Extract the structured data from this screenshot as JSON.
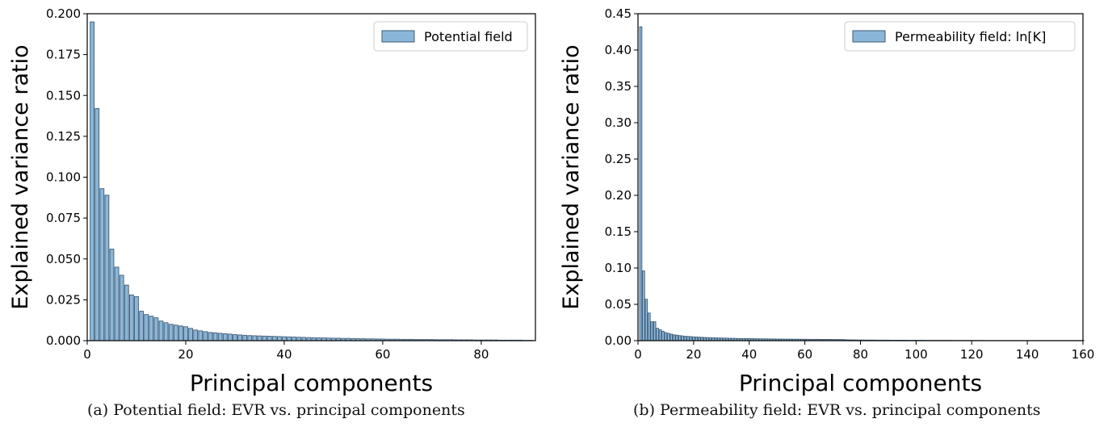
{
  "captions": {
    "a": "(a) Potential field: EVR vs. principal components",
    "b": "(b) Permeability field: EVR vs. principal components"
  },
  "chart_data": [
    {
      "type": "bar",
      "xlabel": "Principal components",
      "ylabel": "Explained variance ratio",
      "legend": "Potential field",
      "legend_position": "top-right",
      "grid": false,
      "xlim": [
        0,
        91
      ],
      "ylim": [
        0,
        0.2
      ],
      "xticks": [
        0,
        20,
        40,
        60,
        80
      ],
      "xtick_labels": [
        "0",
        "20",
        "40",
        "60",
        "80"
      ],
      "yticks": [
        0,
        0.025,
        0.05,
        0.075,
        0.1,
        0.125,
        0.15,
        0.175,
        0.2
      ],
      "ytick_labels": [
        "0.000",
        "0.025",
        "0.050",
        "0.075",
        "0.100",
        "0.125",
        "0.150",
        "0.175",
        "0.200"
      ],
      "bar_color": "#8ab6d9",
      "edge_color": "#3f5b75",
      "x": [
        1,
        2,
        3,
        4,
        5,
        6,
        7,
        8,
        9,
        10,
        11,
        12,
        13,
        14,
        15,
        16,
        17,
        18,
        19,
        20,
        21,
        22,
        23,
        24,
        25,
        26,
        27,
        28,
        29,
        30,
        31,
        32,
        33,
        34,
        35,
        36,
        37,
        38,
        39,
        40,
        41,
        42,
        43,
        44,
        45,
        46,
        47,
        48,
        49,
        50,
        51,
        52,
        53,
        54,
        55,
        56,
        57,
        58,
        59,
        60,
        61,
        62,
        63,
        64,
        65,
        66,
        67,
        68,
        69,
        70,
        71,
        72,
        73,
        74,
        75,
        76,
        77,
        78,
        79,
        80,
        81,
        82,
        83,
        84,
        85,
        86,
        87,
        88,
        89,
        90
      ],
      "values": [
        0.195,
        0.142,
        0.093,
        0.089,
        0.056,
        0.045,
        0.04,
        0.034,
        0.028,
        0.027,
        0.018,
        0.016,
        0.015,
        0.014,
        0.012,
        0.011,
        0.01,
        0.0095,
        0.009,
        0.0085,
        0.0075,
        0.0065,
        0.006,
        0.0055,
        0.005,
        0.0048,
        0.0045,
        0.0042,
        0.004,
        0.0037,
        0.0035,
        0.0033,
        0.0031,
        0.003,
        0.0029,
        0.0028,
        0.0027,
        0.0026,
        0.0025,
        0.0024,
        0.0023,
        0.0022,
        0.0021,
        0.002,
        0.0019,
        0.0018,
        0.0017,
        0.0017,
        0.0016,
        0.0015,
        0.0015,
        0.0014,
        0.0014,
        0.0013,
        0.0012,
        0.0012,
        0.0011,
        0.0011,
        0.001,
        0.001,
        0.0009,
        0.0009,
        0.0009,
        0.0008,
        0.0008,
        0.0008,
        0.0007,
        0.0007,
        0.0007,
        0.0007,
        0.0006,
        0.0006,
        0.0006,
        0.0006,
        0.0005,
        0.0005,
        0.0005,
        0.0005,
        0.0004,
        0.0004,
        0.0004,
        0.0004,
        0.0004,
        0.0003,
        0.0003,
        0.0003,
        0.0003,
        0.0003,
        0.0002,
        0.0002
      ]
    },
    {
      "type": "bar",
      "xlabel": "Principal components",
      "ylabel": "Explained variance ratio",
      "legend": "Permeability field: ln[K]",
      "legend_position": "top-right",
      "grid": false,
      "xlim": [
        0,
        160
      ],
      "ylim": [
        0,
        0.45
      ],
      "xticks": [
        0,
        20,
        40,
        60,
        80,
        100,
        120,
        140,
        160
      ],
      "xtick_labels": [
        "0",
        "20",
        "40",
        "60",
        "80",
        "100",
        "120",
        "140",
        "160"
      ],
      "yticks": [
        0,
        0.05,
        0.1,
        0.15,
        0.2,
        0.25,
        0.3,
        0.35,
        0.4,
        0.45
      ],
      "ytick_labels": [
        "0.00",
        "0.05",
        "0.10",
        "0.15",
        "0.20",
        "0.25",
        "0.30",
        "0.35",
        "0.40",
        "0.45"
      ],
      "bar_color": "#8ab6d9",
      "edge_color": "#3f5b75",
      "x": [
        1,
        2,
        3,
        4,
        5,
        6,
        7,
        8,
        9,
        10,
        11,
        12,
        13,
        14,
        15,
        16,
        17,
        18,
        19,
        20,
        21,
        22,
        23,
        24,
        25,
        26,
        27,
        28,
        29,
        30,
        31,
        32,
        33,
        34,
        35,
        36,
        37,
        38,
        39,
        40,
        41,
        42,
        43,
        44,
        45,
        46,
        47,
        48,
        49,
        50,
        51,
        52,
        53,
        54,
        55,
        56,
        57,
        58,
        59,
        60,
        61,
        62,
        63,
        64,
        65,
        66,
        67,
        68,
        69,
        70,
        71,
        72,
        73,
        74,
        75,
        76,
        77,
        78,
        79,
        80,
        81,
        82,
        83,
        84,
        85,
        86,
        87,
        88,
        89,
        90,
        91,
        92,
        93,
        94,
        95,
        96,
        97,
        98,
        99,
        100,
        101,
        102,
        103,
        104,
        105,
        106,
        107,
        108,
        109,
        110,
        111,
        112,
        113,
        114,
        115,
        116,
        117,
        118,
        119,
        120,
        121,
        122,
        123,
        124,
        125,
        126,
        127,
        128,
        129,
        130,
        131,
        132,
        133,
        134,
        135,
        136,
        137,
        138,
        139,
        140,
        141,
        142,
        143,
        144,
        145,
        146,
        147,
        148,
        149,
        150,
        151,
        152,
        153,
        154,
        155,
        156,
        157,
        158,
        159,
        160
      ],
      "values": [
        0.432,
        0.096,
        0.057,
        0.038,
        0.026,
        0.026,
        0.017,
        0.015,
        0.013,
        0.011,
        0.01,
        0.009,
        0.008,
        0.0075,
        0.007,
        0.0065,
        0.006,
        0.0058,
        0.0055,
        0.0052,
        0.005,
        0.0048,
        0.0046,
        0.0044,
        0.0042,
        0.004,
        0.0039,
        0.0038,
        0.0037,
        0.0036,
        0.0035,
        0.0034,
        0.0033,
        0.0032,
        0.0031,
        0.003,
        0.0029,
        0.0029,
        0.0028,
        0.0027,
        0.0027,
        0.0026,
        0.0026,
        0.0025,
        0.0025,
        0.0024,
        0.0024,
        0.0023,
        0.0023,
        0.0022,
        0.0022,
        0.0022,
        0.0021,
        0.0021,
        0.0021,
        0.002,
        0.002,
        0.002,
        0.0019,
        0.0019,
        0.0019,
        0.0018,
        0.0018,
        0.0018,
        0.0018,
        0.0017,
        0.0017,
        0.0017,
        0.0017,
        0.0016,
        0.0016,
        0.0016,
        0.0016,
        0.0015,
        0.0012,
        0.0011,
        0.001,
        0.001,
        0.0009,
        0.0009,
        0.0009,
        0.0008,
        0.0008,
        0.0008,
        0.0008,
        0.0007,
        0.0007,
        0.0007,
        0.0007,
        0.0007,
        0.0006,
        0.0006,
        0.0006,
        0.0006,
        0.0006,
        0.0006,
        0.0005,
        0.0005,
        0.0005,
        0.0005,
        0.0005,
        0.0005,
        0.0005,
        0.0004,
        0.0004,
        0.0004,
        0.0004,
        0.0004,
        0.0004,
        0.0004,
        0.0004,
        0.0004,
        0.0003,
        0.0003,
        0.0003,
        0.0003,
        0.0003,
        0.0003,
        0.0003,
        0.0003,
        0.0003,
        0.0003,
        0.0003,
        0.0003,
        0.0002,
        0.0002,
        0.0002,
        0.0002,
        0.0002,
        0.0002,
        0.0002,
        0.0002,
        0.0002,
        0.0002,
        0.0002,
        0.0002,
        0.0002,
        0.0002,
        0.0002,
        0.0002,
        0.0002,
        0.0002,
        0.0002,
        0.0002,
        0.0002,
        0.0002,
        0.0002,
        0.0002,
        0.0002,
        0.0002,
        0.0002,
        0.0002,
        0.0002,
        0.0002,
        0.0002,
        0.0002,
        0.0002,
        0.0002,
        0.0002,
        0.0002
      ]
    }
  ]
}
